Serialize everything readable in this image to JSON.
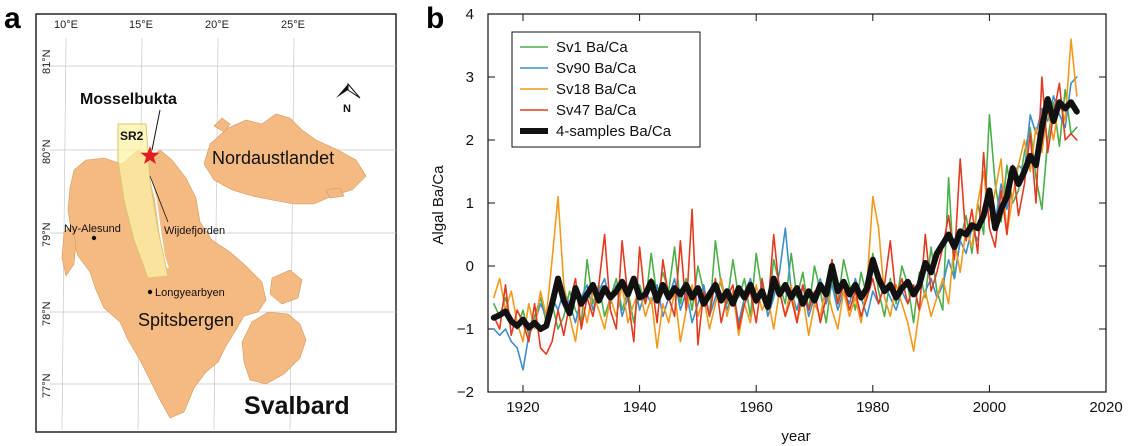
{
  "panels": {
    "a": "a",
    "b": "b"
  },
  "map": {
    "longitude_labels": [
      "10°E",
      "15°E",
      "20°E",
      "25°E"
    ],
    "latitude_labels": [
      "81°N",
      "80°N",
      "79°N",
      "78°N",
      "77°N"
    ],
    "north_label": "N",
    "region_title": "Svalbard",
    "site_label": "Mosselbukta",
    "region_box_label": "SR2",
    "places": {
      "nordaustlandet": "Nordaustlandet",
      "spitsbergen": "Spitsbergen",
      "ny_alesund": "Ny-Alesund",
      "wijdefjorden": "Wijdefjorden",
      "longyearbyen": "Longyearbyen"
    },
    "colors": {
      "land": "#f5b982",
      "sr2_box": "#fbf2a6",
      "star": "#e0201f",
      "frame": "#333333"
    }
  },
  "chart_data": {
    "type": "line",
    "title": "",
    "xlabel": "year",
    "ylabel": "Algal Ba/Ca",
    "xlim": [
      1914,
      2020
    ],
    "ylim": [
      -2,
      4
    ],
    "x_ticks": [
      "1920",
      "1940",
      "1960",
      "1980",
      "2000",
      "2020"
    ],
    "y_ticks": [
      "−2",
      "−1",
      "0",
      "1",
      "2",
      "3",
      "4"
    ],
    "legend_position": "top-left",
    "x": [
      1915,
      1916,
      1917,
      1918,
      1919,
      1920,
      1921,
      1922,
      1923,
      1924,
      1925,
      1926,
      1927,
      1928,
      1929,
      1930,
      1931,
      1932,
      1933,
      1934,
      1935,
      1936,
      1937,
      1938,
      1939,
      1940,
      1941,
      1942,
      1943,
      1944,
      1945,
      1946,
      1947,
      1948,
      1949,
      1950,
      1951,
      1952,
      1953,
      1954,
      1955,
      1956,
      1957,
      1958,
      1959,
      1960,
      1961,
      1962,
      1963,
      1964,
      1965,
      1966,
      1967,
      1968,
      1969,
      1970,
      1971,
      1972,
      1973,
      1974,
      1975,
      1976,
      1977,
      1978,
      1979,
      1980,
      1981,
      1982,
      1983,
      1984,
      1985,
      1986,
      1987,
      1988,
      1989,
      1990,
      1991,
      1992,
      1993,
      1994,
      1995,
      1996,
      1997,
      1998,
      1999,
      2000,
      2001,
      2002,
      2003,
      2004,
      2005,
      2006,
      2007,
      2008,
      2009,
      2010,
      2011,
      2012,
      2013,
      2014,
      2015
    ],
    "series": [
      {
        "name": "Sv1 Ba/Ca",
        "color": "#4daf4a",
        "width": 1.6,
        "values": [
          -0.6,
          -0.8,
          -0.5,
          -0.9,
          -1.0,
          -0.7,
          -1.1,
          -0.8,
          -0.5,
          -0.9,
          -0.6,
          -1.0,
          -0.8,
          -0.4,
          -0.7,
          -0.9,
          0.1,
          -0.6,
          -0.3,
          -0.8,
          -0.5,
          -0.2,
          -0.7,
          -0.4,
          -0.9,
          -0.3,
          -0.6,
          0.2,
          -0.5,
          -0.1,
          -0.4,
          0.3,
          -0.6,
          -0.2,
          -0.7,
          0.0,
          -0.4,
          -0.8,
          0.4,
          -0.3,
          -0.6,
          0.1,
          -0.5,
          -0.2,
          -0.8,
          0.2,
          -0.4,
          -0.7,
          0.1,
          -0.3,
          -0.6,
          0.2,
          -0.5,
          -0.1,
          -0.7,
          0.0,
          -0.4,
          -0.9,
          -0.2,
          -0.6,
          0.1,
          -0.3,
          -0.7,
          -0.1,
          -0.5,
          0.2,
          -0.4,
          -0.8,
          -0.2,
          -0.6,
          0.0,
          -0.3,
          -0.9,
          -0.1,
          -0.5,
          0.3,
          -0.4,
          -0.7,
          1.4,
          -0.2,
          0.4,
          0.8,
          0.2,
          1.0,
          0.5,
          2.4,
          1.3,
          0.7,
          1.6,
          1.0,
          1.2,
          1.8,
          2.2,
          1.4,
          0.9,
          2.0,
          2.6,
          1.9,
          2.8,
          2.1,
          2.2
        ]
      },
      {
        "name": "Sv90 Ba/Ca",
        "color": "#3f8fcc",
        "width": 1.6,
        "values": [
          -1.0,
          -1.1,
          -1.0,
          -1.2,
          -1.3,
          -1.65,
          -1.1,
          -0.9,
          -0.6,
          -0.8,
          -0.5,
          -0.7,
          -0.4,
          -0.6,
          -0.9,
          -0.5,
          -0.3,
          -0.7,
          -0.4,
          -0.2,
          -0.6,
          -0.3,
          -0.8,
          -0.5,
          -0.2,
          -0.7,
          -0.4,
          -0.6,
          -0.3,
          -0.8,
          -0.5,
          -0.2,
          -0.7,
          -0.4,
          -0.9,
          -0.6,
          -0.3,
          -0.8,
          -0.5,
          -0.2,
          -0.7,
          -0.4,
          -0.9,
          -0.5,
          -0.2,
          -0.6,
          -0.3,
          -0.8,
          -0.5,
          -0.1,
          0.6,
          -0.4,
          -0.7,
          -0.3,
          -0.8,
          -0.5,
          -0.2,
          -0.6,
          -0.3,
          -0.7,
          -0.4,
          -0.6,
          -0.2,
          -0.5,
          -0.8,
          -0.4,
          -0.6,
          -0.3,
          -0.5,
          -0.7,
          -0.4,
          -0.6,
          -0.3,
          -0.7,
          -0.4,
          -0.2,
          -0.5,
          -0.3,
          0.1,
          -0.2,
          0.4,
          0.2,
          0.6,
          0.4,
          0.9,
          1.1,
          0.7,
          1.3,
          0.9,
          1.4,
          1.6,
          1.5,
          2.4,
          2.1,
          2.5,
          2.3,
          2.7,
          2.4,
          2.2,
          2.9,
          3.0
        ]
      },
      {
        "name": "Sv18 Ba/Ca",
        "color": "#f39a1c",
        "width": 1.6,
        "values": [
          -0.5,
          -0.2,
          -0.7,
          -0.4,
          -0.9,
          -1.2,
          -0.6,
          -1.0,
          -0.4,
          -0.8,
          0.1,
          1.1,
          -0.3,
          -0.8,
          -1.2,
          -0.5,
          -0.9,
          -0.4,
          -0.7,
          -1.0,
          -0.5,
          -0.8,
          -0.3,
          -0.9,
          -0.6,
          -0.4,
          -0.8,
          -0.5,
          -1.3,
          -0.6,
          -0.9,
          -0.4,
          -1.2,
          -0.7,
          -0.3,
          -0.8,
          -0.5,
          -1.0,
          -0.6,
          -0.2,
          -0.8,
          -0.4,
          -1.1,
          -0.6,
          -0.9,
          -0.3,
          -0.7,
          -0.5,
          -1.0,
          -0.4,
          -0.8,
          -0.3,
          -0.9,
          -0.5,
          -1.1,
          -0.6,
          -0.8,
          -0.3,
          -0.7,
          -1.0,
          -0.4,
          -0.8,
          -0.5,
          -0.9,
          -0.3,
          1.1,
          0.6,
          -0.5,
          -0.8,
          -0.3,
          -0.6,
          -0.9,
          -1.35,
          -0.7,
          -0.4,
          -0.8,
          -0.5,
          -0.2,
          -0.6,
          0.4,
          -0.1,
          0.6,
          0.3,
          1.0,
          1.5,
          0.7,
          1.2,
          1.7,
          0.5,
          1.1,
          1.6,
          2.0,
          1.5,
          2.2,
          1.8,
          2.5,
          2.0,
          2.6,
          2.3,
          3.6,
          2.7
        ]
      },
      {
        "name": "Sv47 Ba/Ca",
        "color": "#e33b22",
        "width": 1.6,
        "values": [
          -0.8,
          -1.0,
          -0.3,
          -1.1,
          -0.7,
          -0.9,
          -1.2,
          -0.6,
          -1.3,
          -1.4,
          -1.2,
          -0.7,
          -1.1,
          -0.6,
          -0.2,
          -1.0,
          -0.5,
          -0.8,
          -0.3,
          0.5,
          -0.7,
          -1.0,
          0.4,
          -0.5,
          -1.2,
          0.3,
          -0.6,
          -0.2,
          -0.9,
          0.1,
          -0.5,
          -0.8,
          0.4,
          -0.7,
          0.9,
          -1.25,
          -0.4,
          -0.8,
          -0.2,
          -0.9,
          -0.5,
          -0.3,
          -1.0,
          -0.6,
          -0.4,
          -0.9,
          -0.2,
          -0.7,
          0.5,
          -0.4,
          -0.8,
          -0.5,
          -0.9,
          -0.3,
          -0.7,
          -0.4,
          -0.9,
          -0.5,
          0.1,
          -0.6,
          -0.3,
          -0.7,
          -0.4,
          -0.8,
          -0.5,
          -0.2,
          -0.6,
          -0.3,
          0.4,
          -0.5,
          -0.2,
          -0.6,
          -0.3,
          -0.7,
          0.5,
          -0.4,
          -0.1,
          0.3,
          0.8,
          0.1,
          1.7,
          0.4,
          0.9,
          0.2,
          1.8,
          0.6,
          0.3,
          1.2,
          0.5,
          1.6,
          0.8,
          1.3,
          2.1,
          1.0,
          3.0,
          1.8,
          2.4,
          2.9,
          2.0,
          2.1,
          2.0
        ]
      },
      {
        "name": "4-samples Ba/Ca",
        "color": "#111111",
        "width": 6,
        "values": [
          -0.82,
          -0.78,
          -0.72,
          -0.88,
          -0.95,
          -0.85,
          -0.98,
          -0.9,
          -1.0,
          -0.95,
          -0.6,
          -0.2,
          -0.55,
          -0.75,
          -0.35,
          -0.6,
          -0.45,
          -0.3,
          -0.55,
          -0.35,
          -0.5,
          -0.4,
          -0.25,
          -0.45,
          -0.2,
          -0.5,
          -0.45,
          -0.25,
          -0.55,
          -0.3,
          -0.5,
          -0.35,
          -0.45,
          -0.3,
          -0.5,
          -0.35,
          -0.6,
          -0.45,
          -0.3,
          -0.55,
          -0.4,
          -0.6,
          -0.35,
          -0.5,
          -0.3,
          -0.55,
          -0.4,
          -0.65,
          -0.2,
          -0.45,
          -0.3,
          -0.5,
          -0.35,
          -0.6,
          -0.4,
          -0.55,
          -0.3,
          -0.45,
          0.0,
          -0.4,
          -0.25,
          -0.45,
          -0.3,
          -0.5,
          -0.35,
          0.1,
          -0.2,
          -0.4,
          -0.3,
          -0.5,
          -0.35,
          -0.25,
          -0.45,
          -0.3,
          0.05,
          -0.1,
          0.2,
          0.35,
          0.5,
          0.3,
          0.55,
          0.5,
          0.65,
          0.6,
          0.8,
          1.2,
          0.6,
          0.9,
          1.1,
          1.55,
          1.3,
          1.5,
          1.75,
          1.6,
          2.2,
          2.65,
          2.3,
          2.6,
          2.5,
          2.6,
          2.45
        ]
      }
    ]
  }
}
